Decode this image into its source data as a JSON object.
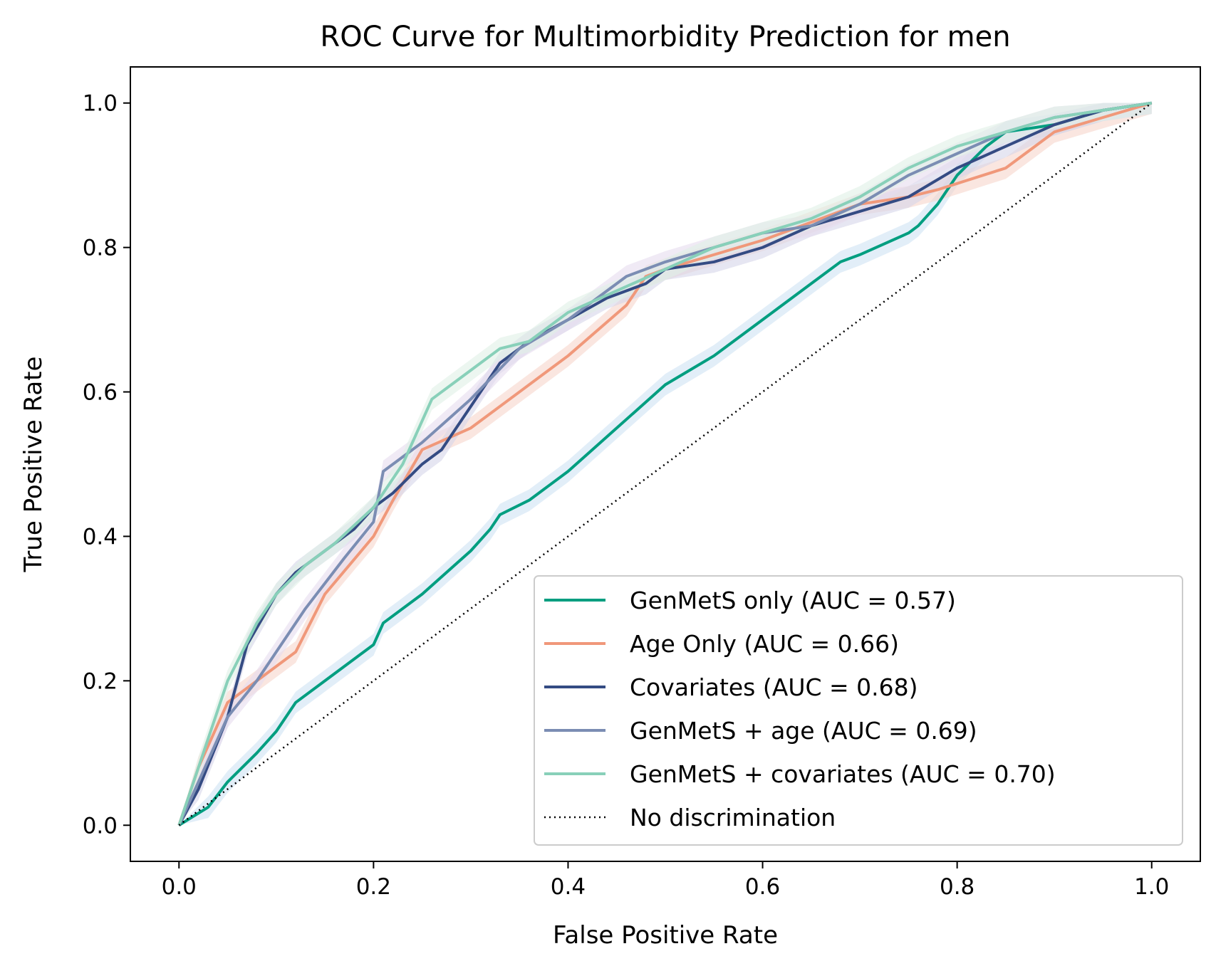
{
  "chart_data": {
    "type": "line",
    "title": "ROC Curve for Multimorbidity Prediction for men",
    "xlabel": "False Positive Rate",
    "ylabel": "True Positive Rate",
    "xlim": [
      -0.05,
      1.05
    ],
    "ylim": [
      -0.05,
      1.05
    ],
    "xticks": [
      0.0,
      0.2,
      0.4,
      0.6,
      0.8,
      1.0
    ],
    "yticks": [
      0.0,
      0.2,
      0.4,
      0.6,
      0.8,
      1.0
    ],
    "xtick_labels": [
      "0.0",
      "0.2",
      "0.4",
      "0.6",
      "0.8",
      "1.0"
    ],
    "ytick_labels": [
      "0.0",
      "0.2",
      "0.4",
      "0.6",
      "0.8",
      "1.0"
    ],
    "grid": false,
    "legend_position": "lower-right",
    "series": [
      {
        "name": "GenMetS only (AUC = 0.57)",
        "color": "#009e80",
        "band_color": "#cfe3f3",
        "x": [
          0,
          0.03,
          0.05,
          0.08,
          0.1,
          0.12,
          0.15,
          0.2,
          0.21,
          0.25,
          0.3,
          0.32,
          0.33,
          0.36,
          0.38,
          0.4,
          0.45,
          0.5,
          0.55,
          0.6,
          0.68,
          0.7,
          0.75,
          0.76,
          0.78,
          0.8,
          0.83,
          0.85,
          0.9,
          0.95,
          1.0
        ],
        "y": [
          0,
          0.025,
          0.06,
          0.1,
          0.13,
          0.17,
          0.2,
          0.25,
          0.28,
          0.32,
          0.38,
          0.41,
          0.43,
          0.45,
          0.47,
          0.49,
          0.55,
          0.61,
          0.65,
          0.7,
          0.78,
          0.79,
          0.82,
          0.83,
          0.86,
          0.9,
          0.94,
          0.96,
          0.97,
          0.99,
          1.0
        ]
      },
      {
        "name": "Age Only (AUC = 0.66)",
        "color": "#f0987a",
        "band_color": "#f7d6cc",
        "x": [
          0,
          0.02,
          0.05,
          0.08,
          0.12,
          0.15,
          0.2,
          0.22,
          0.25,
          0.3,
          0.35,
          0.4,
          0.46,
          0.48,
          0.5,
          0.6,
          0.7,
          0.75,
          0.78,
          0.85,
          0.88,
          0.9,
          0.95,
          1.0
        ],
        "y": [
          0,
          0.08,
          0.17,
          0.2,
          0.24,
          0.32,
          0.4,
          0.45,
          0.52,
          0.55,
          0.6,
          0.65,
          0.72,
          0.76,
          0.77,
          0.81,
          0.86,
          0.87,
          0.88,
          0.91,
          0.94,
          0.96,
          0.98,
          1.0
        ]
      },
      {
        "name": "Covariates (AUC = 0.68)",
        "color": "#344b83",
        "band_color": "#d6d6ea",
        "x": [
          0,
          0.02,
          0.05,
          0.07,
          0.1,
          0.12,
          0.15,
          0.18,
          0.2,
          0.22,
          0.25,
          0.27,
          0.3,
          0.33,
          0.36,
          0.4,
          0.44,
          0.48,
          0.5,
          0.55,
          0.6,
          0.65,
          0.7,
          0.75,
          0.8,
          0.85,
          0.9,
          0.95,
          1.0
        ],
        "y": [
          0,
          0.05,
          0.15,
          0.25,
          0.32,
          0.35,
          0.38,
          0.41,
          0.44,
          0.46,
          0.5,
          0.52,
          0.58,
          0.64,
          0.67,
          0.7,
          0.73,
          0.75,
          0.77,
          0.78,
          0.8,
          0.83,
          0.85,
          0.87,
          0.91,
          0.94,
          0.97,
          0.99,
          1.0
        ]
      },
      {
        "name": "GenMetS + age (AUC = 0.69)",
        "color": "#7b8db3",
        "band_color": "#e6dcef",
        "x": [
          0,
          0.02,
          0.05,
          0.08,
          0.1,
          0.13,
          0.17,
          0.2,
          0.21,
          0.25,
          0.3,
          0.35,
          0.4,
          0.46,
          0.5,
          0.55,
          0.6,
          0.65,
          0.7,
          0.75,
          0.8,
          0.85,
          0.9,
          0.95,
          1.0
        ],
        "y": [
          0,
          0.06,
          0.15,
          0.2,
          0.24,
          0.3,
          0.37,
          0.42,
          0.49,
          0.53,
          0.59,
          0.66,
          0.7,
          0.76,
          0.78,
          0.8,
          0.82,
          0.83,
          0.86,
          0.9,
          0.93,
          0.96,
          0.98,
          0.99,
          1.0
        ]
      },
      {
        "name": "GenMetS + covariates (AUC = 0.70)",
        "color": "#88d0b9",
        "band_color": "#dff0e6",
        "x": [
          0,
          0.02,
          0.05,
          0.08,
          0.1,
          0.13,
          0.16,
          0.2,
          0.23,
          0.26,
          0.3,
          0.33,
          0.36,
          0.4,
          0.45,
          0.5,
          0.55,
          0.6,
          0.65,
          0.7,
          0.75,
          0.8,
          0.85,
          0.9,
          0.95,
          1.0
        ],
        "y": [
          0,
          0.08,
          0.2,
          0.28,
          0.32,
          0.36,
          0.39,
          0.44,
          0.5,
          0.59,
          0.63,
          0.66,
          0.67,
          0.71,
          0.74,
          0.77,
          0.8,
          0.82,
          0.84,
          0.87,
          0.91,
          0.94,
          0.96,
          0.98,
          0.99,
          1.0
        ]
      },
      {
        "name": "No discrimination",
        "color": "#000000",
        "dashed": true,
        "x": [
          0,
          1
        ],
        "y": [
          0,
          1
        ]
      }
    ]
  }
}
